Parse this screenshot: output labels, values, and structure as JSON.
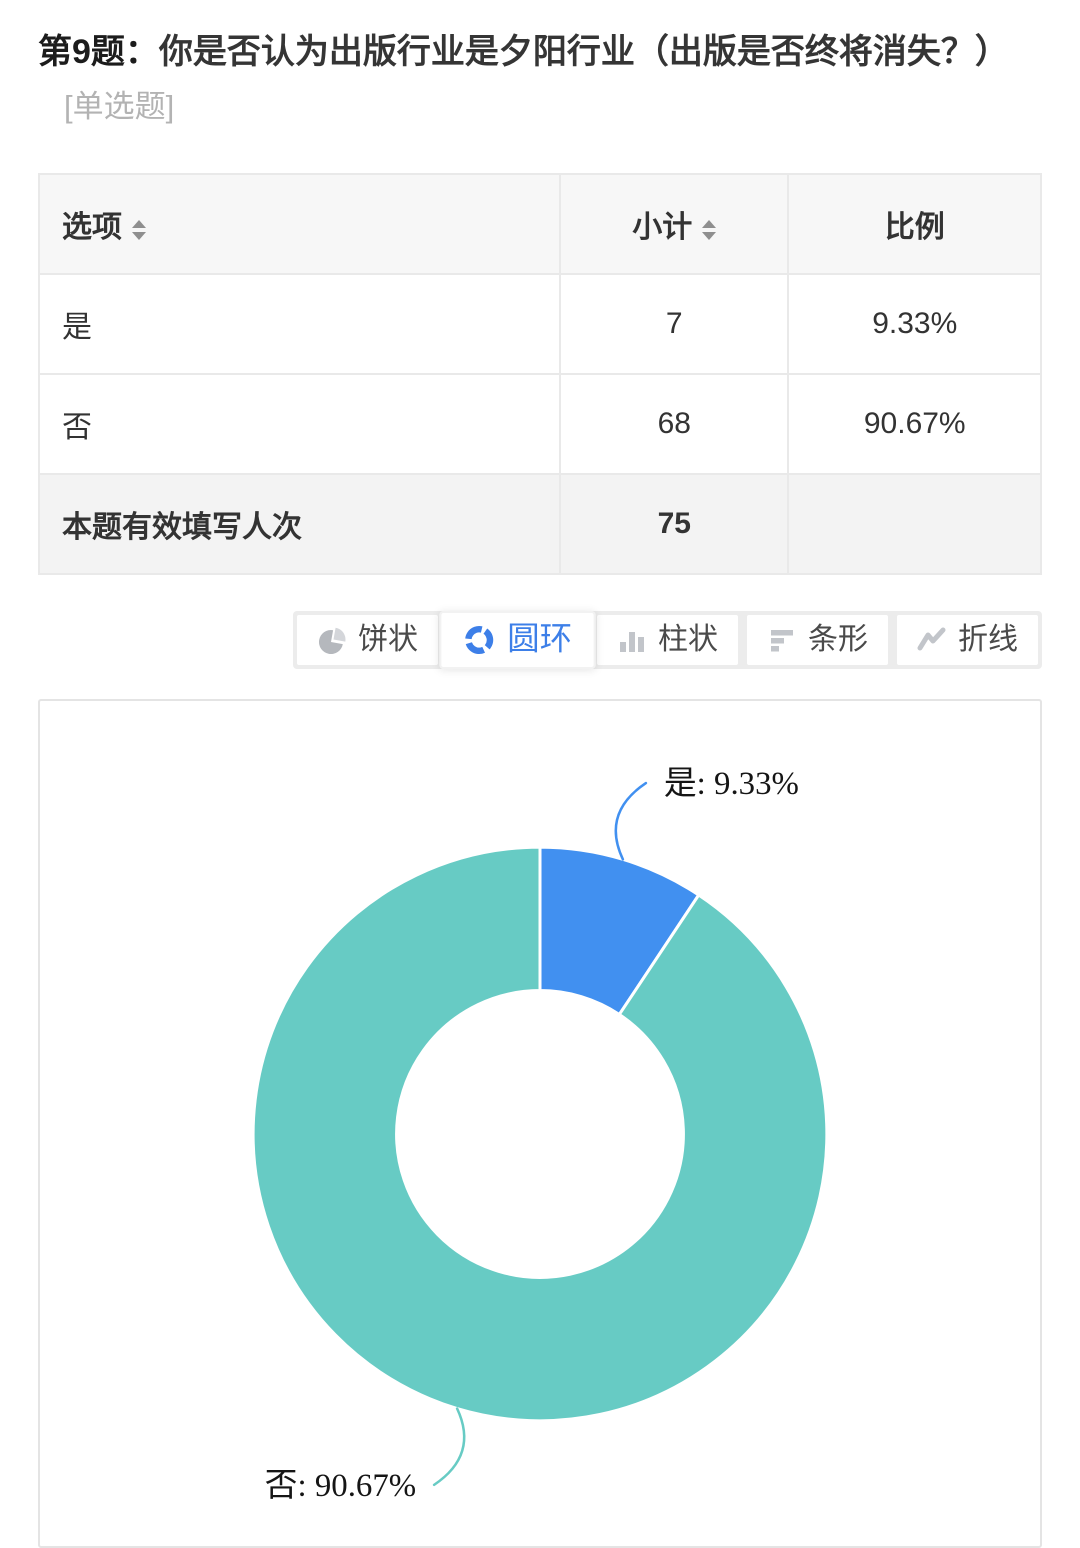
{
  "question": {
    "number_label": "第9题：",
    "text": "你是否认为出版行业是夕阳行业（出版是否终将消失？）",
    "type_label": "[单选题]"
  },
  "table": {
    "headers": [
      "选项",
      "小计",
      "比例"
    ],
    "rows": [
      {
        "option": "是",
        "count": "7",
        "ratio": "9.33%"
      },
      {
        "option": "否",
        "count": "68",
        "ratio": "90.67%"
      }
    ],
    "footer": {
      "label": "本题有效填写人次",
      "count": "75"
    }
  },
  "chart_switcher": {
    "active_label": "圆环",
    "active_color": "#3d7fe8",
    "inactive_icon_color": "#c2c5ca",
    "buttons": [
      {
        "label": "饼状",
        "icon": "pie-chart-icon",
        "active": false
      },
      {
        "label": "圆环",
        "icon": "donut-chart-icon",
        "active": true
      },
      {
        "label": "柱状",
        "icon": "column-chart-icon",
        "active": false
      },
      {
        "label": "条形",
        "icon": "bar-chart-icon",
        "active": false
      },
      {
        "label": "折线",
        "icon": "line-chart-icon",
        "active": false
      }
    ]
  },
  "chart_data": {
    "type": "pie",
    "subtype": "donut",
    "title": "",
    "categories": [
      "是",
      "否"
    ],
    "values": [
      9.33,
      90.67
    ],
    "counts": [
      7,
      68
    ],
    "unit": "%",
    "colors": [
      "#4190f0",
      "#67cbc4"
    ],
    "labels": [
      "是: 9.33%",
      "否: 90.67%"
    ],
    "start_angle_deg": -90,
    "direction": "clockwise",
    "inner_radius_ratio": 0.5,
    "legend_position": "none"
  }
}
